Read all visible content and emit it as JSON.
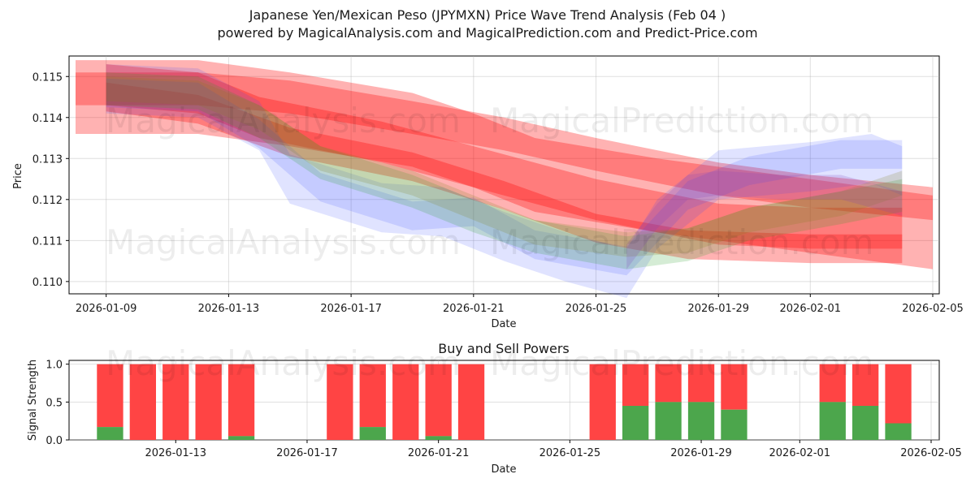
{
  "header": {
    "title": "Japanese Yen/Mexican Peso (JPYMXN) Price Wave Trend Analysis (Feb 04 )",
    "subtitle": "powered by MagicalAnalysis.com and MagicalPrediction.com and Predict-Price.com"
  },
  "watermarks": [
    "MagicalAnalysis.com",
    "MagicalPrediction.com"
  ],
  "colors": {
    "red": "#ff0000",
    "blue": "#3040ff",
    "green": "#2ca02c",
    "purple": "#8040c0",
    "olive": "#808020",
    "buy": "#4ca64c",
    "sell": "#ff4444"
  },
  "chart_data": [
    {
      "type": "line",
      "name": "price-wave",
      "xlabel": "Date",
      "ylabel": "Price",
      "x_ticks": [
        "2026-01-09",
        "2026-01-13",
        "2026-01-17",
        "2026-01-21",
        "2026-01-25",
        "2026-01-29",
        "2026-02-01",
        "2026-02-05"
      ],
      "y_ticks": [
        "0.110",
        "0.111",
        "0.112",
        "0.113",
        "0.114",
        "0.115"
      ],
      "xlim": [
        "2026-01-08",
        "2026-02-05"
      ],
      "ylim": [
        0.1097,
        0.1155
      ],
      "grid": true,
      "bands": [
        {
          "color": "red",
          "opacity": 0.3,
          "x": [
            "2026-01-08",
            "2026-01-12",
            "2026-01-15",
            "2026-01-19",
            "2026-01-21",
            "2026-01-23",
            "2026-01-27",
            "2026-02-01",
            "2026-02-05"
          ],
          "center": [
            0.1145,
            0.1145,
            0.1142,
            0.1137,
            0.1132,
            0.1126,
            0.1121,
            0.1116,
            0.1112
          ],
          "width": [
            0.0018,
            0.0018,
            0.0018,
            0.0018,
            0.0018,
            0.0018,
            0.0018,
            0.0018,
            0.0018
          ]
        },
        {
          "color": "red",
          "opacity": 0.3,
          "x": [
            "2026-01-08",
            "2026-01-12",
            "2026-01-15",
            "2026-01-19",
            "2026-01-22",
            "2026-01-25",
            "2026-01-29",
            "2026-02-01",
            "2026-02-05"
          ],
          "center": [
            0.1147,
            0.1147,
            0.1145,
            0.114,
            0.1136,
            0.1131,
            0.1125,
            0.1122,
            0.1119
          ],
          "width": [
            0.0008,
            0.0008,
            0.0008,
            0.0008,
            0.0008,
            0.0008,
            0.0008,
            0.0008,
            0.0008
          ]
        },
        {
          "color": "red",
          "opacity": 0.3,
          "x": [
            "2026-01-09",
            "2026-01-12",
            "2026-01-14",
            "2026-01-18",
            "2026-01-21",
            "2026-01-25",
            "2026-01-29",
            "2026-02-01",
            "2026-02-04"
          ],
          "center": [
            0.1148,
            0.1146,
            0.114,
            0.1134,
            0.1128,
            0.112,
            0.1114,
            0.1113,
            0.1113
          ],
          "width": [
            0.001,
            0.001,
            0.001,
            0.001,
            0.001,
            0.001,
            0.001,
            0.001,
            0.001
          ]
        },
        {
          "color": "red",
          "opacity": 0.3,
          "x": [
            "2026-01-09",
            "2026-01-12",
            "2026-01-15",
            "2026-01-19",
            "2026-01-22",
            "2026-01-25",
            "2026-01-28",
            "2026-02-01",
            "2026-02-04"
          ],
          "center": [
            0.1145,
            0.1142,
            0.1134,
            0.1128,
            0.1121,
            0.1113,
            0.1109,
            0.1108,
            0.1108
          ],
          "width": [
            0.0007,
            0.0007,
            0.0007,
            0.0007,
            0.0007,
            0.0007,
            0.0007,
            0.0007,
            0.0007
          ]
        },
        {
          "color": "blue",
          "opacity": 0.15,
          "x": [
            "2026-01-09",
            "2026-01-12",
            "2026-01-14",
            "2026-01-15",
            "2026-01-18",
            "2026-01-20",
            "2026-01-22",
            "2026-01-24",
            "2026-01-26",
            "2026-01-27",
            "2026-01-29",
            "2026-02-01",
            "2026-02-03",
            "2026-02-04"
          ],
          "center": [
            0.1147,
            0.1146,
            0.1138,
            0.1125,
            0.1118,
            0.1117,
            0.1111,
            0.1106,
            0.1102,
            0.1114,
            0.1126,
            0.1128,
            0.113,
            0.1127
          ],
          "width": [
            0.0012,
            0.0012,
            0.0012,
            0.0012,
            0.0012,
            0.0012,
            0.0012,
            0.0012,
            0.0012,
            0.0012,
            0.0012,
            0.0012,
            0.0012,
            0.0012
          ]
        },
        {
          "color": "blue",
          "opacity": 0.15,
          "x": [
            "2026-01-09",
            "2026-01-12",
            "2026-01-14",
            "2026-01-16",
            "2026-01-19",
            "2026-01-21",
            "2026-01-23",
            "2026-01-26",
            "2026-01-28",
            "2026-01-30",
            "2026-02-02",
            "2026-02-04"
          ],
          "center": [
            0.1146,
            0.1145,
            0.1136,
            0.1123,
            0.1116,
            0.1117,
            0.1109,
            0.1105,
            0.1121,
            0.1127,
            0.1131,
            0.1131
          ],
          "width": [
            0.0007,
            0.0007,
            0.0007,
            0.0007,
            0.0007,
            0.0007,
            0.0007,
            0.0007,
            0.0007,
            0.0007,
            0.0007,
            0.0007
          ]
        },
        {
          "color": "green",
          "opacity": 0.2,
          "x": [
            "2026-01-09",
            "2026-01-12",
            "2026-01-14",
            "2026-01-16",
            "2026-01-19",
            "2026-01-21",
            "2026-01-23",
            "2026-01-26",
            "2026-01-28",
            "2026-01-30",
            "2026-02-02",
            "2026-02-04"
          ],
          "center": [
            0.1147,
            0.1146,
            0.1139,
            0.1129,
            0.1122,
            0.1116,
            0.1111,
            0.1107,
            0.1109,
            0.1114,
            0.1118,
            0.1121
          ],
          "width": [
            0.0008,
            0.0008,
            0.0008,
            0.0008,
            0.0008,
            0.0008,
            0.0008,
            0.0008,
            0.0008,
            0.0008,
            0.0008,
            0.0008
          ]
        },
        {
          "color": "olive",
          "opacity": 0.2,
          "x": [
            "2026-01-09",
            "2026-01-12",
            "2026-01-14",
            "2026-01-16",
            "2026-01-19",
            "2026-01-21",
            "2026-01-23",
            "2026-01-26",
            "2026-01-28",
            "2026-01-30",
            "2026-02-02",
            "2026-02-04"
          ],
          "center": [
            0.1147,
            0.1146,
            0.114,
            0.113,
            0.1124,
            0.1118,
            0.1112,
            0.1109,
            0.111,
            0.1115,
            0.1119,
            0.1124
          ],
          "width": [
            0.0006,
            0.0006,
            0.0006,
            0.0006,
            0.0006,
            0.0006,
            0.0006,
            0.0006,
            0.0006,
            0.0006,
            0.0006,
            0.0006
          ]
        },
        {
          "color": "purple",
          "opacity": 0.2,
          "x": [
            "2026-01-26",
            "2026-01-27",
            "2026-01-28",
            "2026-01-29",
            "2026-01-31",
            "2026-02-02",
            "2026-02-04"
          ],
          "center": [
            0.1106,
            0.1116,
            0.1123,
            0.1124,
            0.1123,
            0.1123,
            0.1119
          ],
          "width": [
            0.0006,
            0.0006,
            0.0006,
            0.0006,
            0.0006,
            0.0006,
            0.0006
          ]
        }
      ]
    },
    {
      "type": "bar",
      "name": "buy-sell-powers",
      "title": "Buy and Sell Powers",
      "xlabel": "Date",
      "ylabel": "Signal Strength",
      "x_ticks": [
        "2026-01-13",
        "2026-01-17",
        "2026-01-21",
        "2026-01-25",
        "2026-01-29",
        "2026-02-01",
        "2026-02-05"
      ],
      "y_ticks": [
        "0.0",
        "0.5",
        "1.0"
      ],
      "xlim": [
        "2026-01-10",
        "2026-02-05"
      ],
      "ylim": [
        0,
        1.05
      ],
      "grid": true,
      "series": [
        {
          "name": "Buy",
          "color": "buy"
        },
        {
          "name": "Sell",
          "color": "sell"
        }
      ],
      "categories": [
        "2026-01-11",
        "2026-01-12",
        "2026-01-13",
        "2026-01-14",
        "2026-01-15",
        "2026-01-18",
        "2026-01-19",
        "2026-01-20",
        "2026-01-21",
        "2026-01-22",
        "2026-01-26",
        "2026-01-27",
        "2026-01-28",
        "2026-01-29",
        "2026-01-30",
        "2026-02-02",
        "2026-02-03",
        "2026-02-04"
      ],
      "buy": [
        0.17,
        0.0,
        0.0,
        0.0,
        0.05,
        0.0,
        0.17,
        0.0,
        0.05,
        0.0,
        0.0,
        0.45,
        0.5,
        0.5,
        0.4,
        0.5,
        0.45,
        0.22
      ],
      "total": [
        1,
        1,
        1,
        1,
        1,
        1,
        1,
        1,
        1,
        1,
        1,
        1,
        1,
        1,
        1,
        1,
        1,
        1
      ]
    }
  ]
}
